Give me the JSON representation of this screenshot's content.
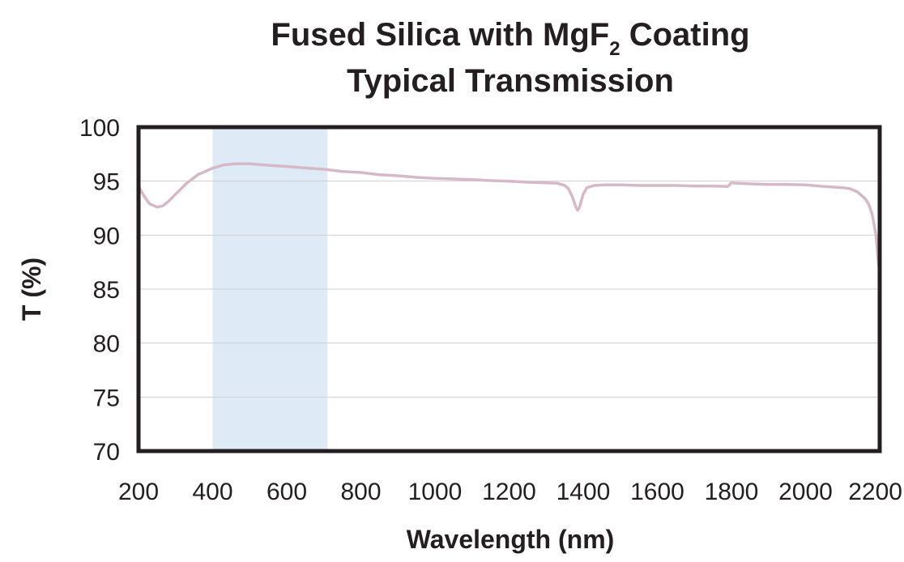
{
  "chart_data": {
    "type": "line",
    "title_line1_main": "Fused Silica with MgF",
    "title_line1_sub": "2",
    "title_line1_end": " Coating",
    "title_line2": "Typical Transmission",
    "xlabel": "Wavelength (nm)",
    "ylabel": "T (%)",
    "xlim": [
      200,
      2200
    ],
    "ylim": [
      70,
      100
    ],
    "x_ticks": [
      200,
      400,
      600,
      800,
      1000,
      1200,
      1400,
      1600,
      1800,
      2000,
      2200
    ],
    "y_ticks": [
      70,
      75,
      80,
      85,
      90,
      95,
      100
    ],
    "grid": "horizontal",
    "highlight_band": {
      "x_start": 400,
      "x_end": 710,
      "color": "#deebf7"
    },
    "series": [
      {
        "color": "#d6b9c6",
        "x": [
          200,
          215,
          230,
          250,
          265,
          280,
          300,
          330,
          360,
          400,
          430,
          460,
          500,
          540,
          580,
          620,
          660,
          700,
          750,
          800,
          850,
          900,
          950,
          1000,
          1050,
          1100,
          1150,
          1200,
          1250,
          1300,
          1330,
          1350,
          1360,
          1370,
          1380,
          1385,
          1390,
          1400,
          1410,
          1430,
          1460,
          1500,
          1550,
          1600,
          1650,
          1700,
          1750,
          1790,
          1800,
          1810,
          1850,
          1900,
          1950,
          2000,
          2050,
          2100,
          2120,
          2140,
          2160,
          2170,
          2180,
          2190,
          2195,
          2200
        ],
        "y": [
          94.5,
          93.6,
          92.9,
          92.6,
          92.7,
          93.1,
          93.8,
          94.8,
          95.6,
          96.2,
          96.5,
          96.6,
          96.6,
          96.5,
          96.4,
          96.3,
          96.2,
          96.1,
          95.9,
          95.8,
          95.6,
          95.5,
          95.35,
          95.25,
          95.2,
          95.15,
          95.05,
          95.0,
          94.9,
          94.85,
          94.8,
          94.6,
          94.3,
          93.6,
          92.6,
          92.3,
          92.6,
          93.8,
          94.4,
          94.6,
          94.65,
          94.65,
          94.6,
          94.6,
          94.6,
          94.55,
          94.55,
          94.5,
          94.85,
          94.8,
          94.75,
          94.7,
          94.7,
          94.65,
          94.5,
          94.4,
          94.3,
          94.0,
          93.4,
          92.9,
          91.9,
          90.0,
          88.0,
          86.5
        ]
      }
    ]
  }
}
